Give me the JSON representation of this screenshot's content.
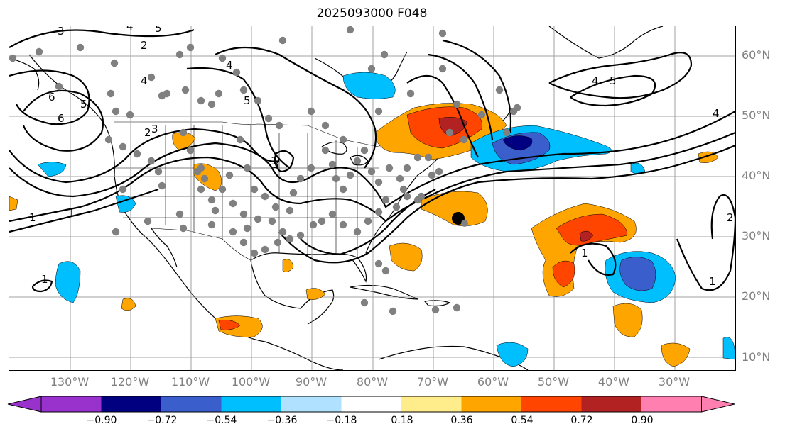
{
  "title": "2025093000 F048",
  "lat_labels": [
    "60°N",
    "50°N",
    "40°N",
    "30°N",
    "20°N",
    "10°N"
  ],
  "lon_labels": [
    "130°W",
    "120°W",
    "110°W",
    "100°W",
    "90°W",
    "80°W",
    "70°W",
    "60°W",
    "50°W",
    "40°W",
    "30°W"
  ],
  "colorbar": {
    "ticks": [
      "−0.90",
      "−0.72",
      "−0.54",
      "−0.36",
      "−0.18",
      "0.18",
      "0.36",
      "0.54",
      "0.72",
      "0.90"
    ],
    "colors": {
      "under": "#9932cc",
      "bins": [
        "#000080",
        "#3a5fcd",
        "#00bfff",
        "#b0e2ff",
        "#ffffff",
        "#ffec8b",
        "#ffa500",
        "#ff4500",
        "#b22222"
      ],
      "over": "#ff7fb0"
    }
  },
  "contour_labels": [
    "3",
    "4",
    "5",
    "2",
    "6",
    "4",
    "6",
    "5",
    "3",
    "5",
    "2",
    "4",
    "3",
    "1",
    "1",
    "4",
    "5",
    "4",
    "1",
    "2",
    "1",
    "1",
    "1"
  ],
  "colors": {
    "positive_fill": "#ffa500",
    "strong_positive_fill": "#ff4500",
    "extreme_positive_fill": "#b22222",
    "negative_fill": "#00bfff",
    "strong_negative_fill": "#3a5fcd",
    "extreme_negative_fill": "#000080",
    "station_dot": "#808080",
    "tc_marker": "#000000"
  }
}
